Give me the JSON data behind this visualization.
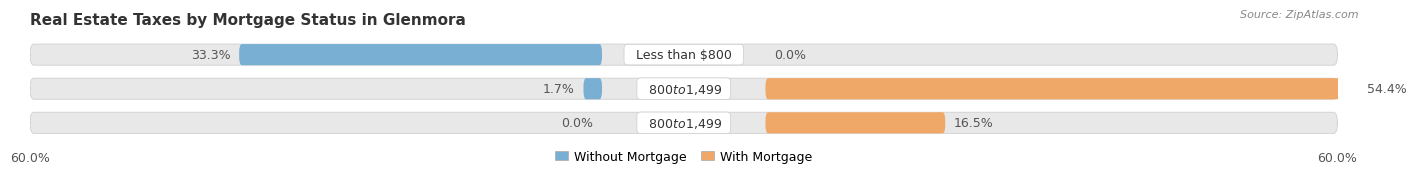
{
  "title": "Real Estate Taxes by Mortgage Status in Glenmora",
  "source": "Source: ZipAtlas.com",
  "rows": [
    {
      "label": "Less than $800",
      "without": 33.3,
      "with": 0.0
    },
    {
      "label": "$800 to $1,499",
      "without": 1.7,
      "with": 54.4
    },
    {
      "label": "$800 to $1,499",
      "without": 0.0,
      "with": 16.5
    }
  ],
  "max_val": 60.0,
  "color_without": "#7aafd4",
  "color_with": "#f0a868",
  "bar_bg_color": "#e8e8e8",
  "bar_bg_edge": "#d0d0d0",
  "title_fontsize": 11,
  "label_fontsize": 9,
  "value_fontsize": 9,
  "tick_fontsize": 9,
  "legend_fontsize": 9,
  "source_fontsize": 8
}
